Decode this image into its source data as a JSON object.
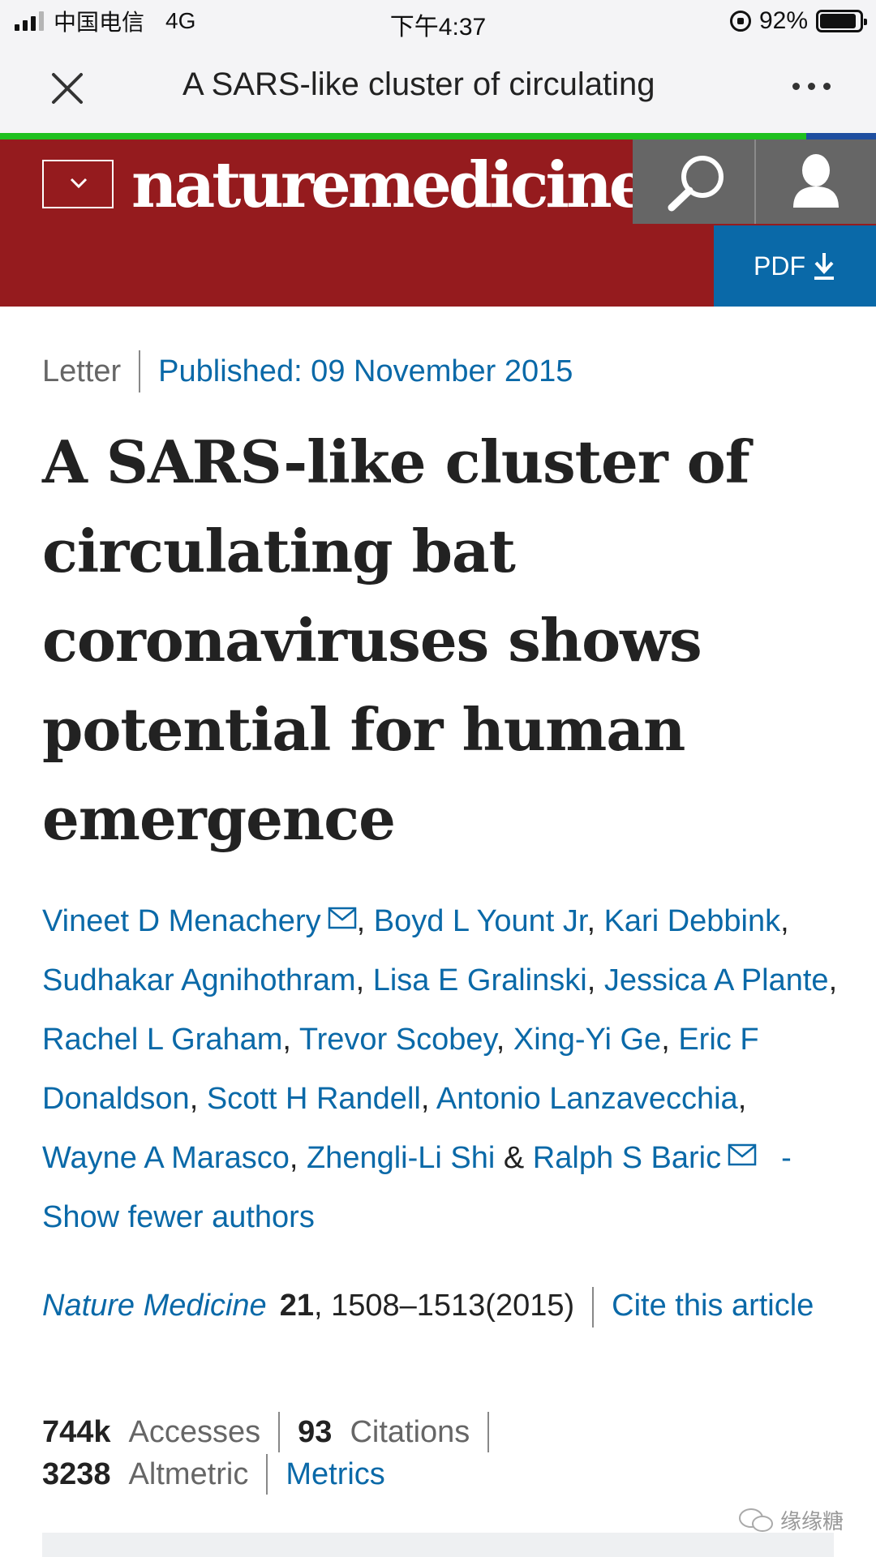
{
  "status_bar": {
    "carrier": "中国电信",
    "network": "4G",
    "time": "下午4:37",
    "battery": "92%",
    "battery_level": 0.92
  },
  "navbar": {
    "title": "A SARS-like cluster of circulating",
    "load_progress": 0.92
  },
  "header": {
    "brand": "naturemedicine",
    "pdf_label": "PDF"
  },
  "article": {
    "type": "Letter",
    "published": "Published: 09 November 2015",
    "title": "A SARS-like cluster of circulating bat coronaviruses shows potential for human emergence"
  },
  "authors": {
    "names": [
      "Vineet D Menachery",
      "Boyd L Yount Jr",
      "Kari Debbink",
      "Sudhakar Agnihothram",
      "Lisa E Gralinski",
      "Jessica A Plante",
      "Rachel L Graham",
      "Trevor Scobey",
      "Xing-Yi Ge",
      "Eric F Donaldson",
      "Scott H Randell",
      "Antonio Lanzavecchia",
      "Wayne A Marasco",
      "Zhengli-Li Shi",
      "Ralph S Baric"
    ],
    "and": "&",
    "show_fewer": "- Show fewer authors"
  },
  "citation": {
    "journal": "Nature Medicine",
    "volume": "21",
    "pages": ", 1508–1513",
    "year": "(2015)",
    "cite_link": "Cite this article"
  },
  "metrics": {
    "accesses_value": "744k",
    "accesses_label": "Accesses",
    "citations_value": "93",
    "citations_label": "Citations",
    "altmetric_value": "3238",
    "altmetric_label": "Altmetric",
    "metrics_link": "Metrics"
  },
  "watermark": "缘缘糖",
  "colors": {
    "header": "#951b1e",
    "link": "#0a69a8",
    "pdf_button": "#0a69a8",
    "progress": "#20c020"
  }
}
